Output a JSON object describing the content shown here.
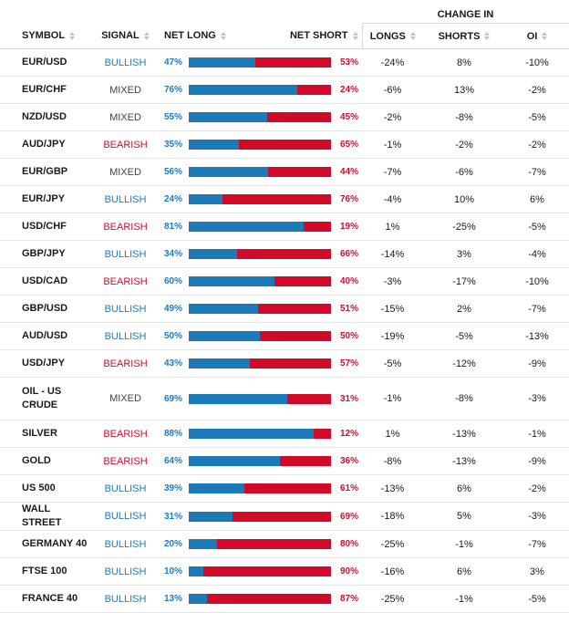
{
  "header": {
    "group_label": "CHANGE IN",
    "columns": {
      "symbol": "SYMBOL",
      "signal": "SIGNAL",
      "net_long": "NET LONG",
      "net_short": "NET SHORT",
      "longs": "LONGS",
      "shorts": "SHORTS",
      "oi": "OI"
    },
    "sort_icon": "sort-arrows-icon"
  },
  "colors": {
    "long": "#1d7ab8",
    "short": "#d10a2a",
    "bullish": "#1a7bbd",
    "bearish": "#c8102e",
    "mixed": "#444444"
  },
  "rows": [
    {
      "symbol": "EUR/USD",
      "signal": "BULLISH",
      "net_long": "47%",
      "net_short": "53%",
      "long_pct": 47,
      "longs": "-24%",
      "shorts": "8%",
      "oi": "-10%"
    },
    {
      "symbol": "EUR/CHF",
      "signal": "MIXED",
      "net_long": "76%",
      "net_short": "24%",
      "long_pct": 76,
      "longs": "-6%",
      "shorts": "13%",
      "oi": "-2%"
    },
    {
      "symbol": "NZD/USD",
      "signal": "MIXED",
      "net_long": "55%",
      "net_short": "45%",
      "long_pct": 55,
      "longs": "-2%",
      "shorts": "-8%",
      "oi": "-5%"
    },
    {
      "symbol": "AUD/JPY",
      "signal": "BEARISH",
      "net_long": "35%",
      "net_short": "65%",
      "long_pct": 35,
      "longs": "-1%",
      "shorts": "-2%",
      "oi": "-2%"
    },
    {
      "symbol": "EUR/GBP",
      "signal": "MIXED",
      "net_long": "56%",
      "net_short": "44%",
      "long_pct": 56,
      "longs": "-7%",
      "shorts": "-6%",
      "oi": "-7%"
    },
    {
      "symbol": "EUR/JPY",
      "signal": "BULLISH",
      "net_long": "24%",
      "net_short": "76%",
      "long_pct": 24,
      "longs": "-4%",
      "shorts": "10%",
      "oi": "6%"
    },
    {
      "symbol": "USD/CHF",
      "signal": "BEARISH",
      "net_long": "81%",
      "net_short": "19%",
      "long_pct": 81,
      "longs": "1%",
      "shorts": "-25%",
      "oi": "-5%"
    },
    {
      "symbol": "GBP/JPY",
      "signal": "BULLISH",
      "net_long": "34%",
      "net_short": "66%",
      "long_pct": 34,
      "longs": "-14%",
      "shorts": "3%",
      "oi": "-4%"
    },
    {
      "symbol": "USD/CAD",
      "signal": "BEARISH",
      "net_long": "60%",
      "net_short": "40%",
      "long_pct": 60,
      "longs": "-3%",
      "shorts": "-17%",
      "oi": "-10%"
    },
    {
      "symbol": "GBP/USD",
      "signal": "BULLISH",
      "net_long": "49%",
      "net_short": "51%",
      "long_pct": 49,
      "longs": "-15%",
      "shorts": "2%",
      "oi": "-7%"
    },
    {
      "symbol": "AUD/USD",
      "signal": "BULLISH",
      "net_long": "50%",
      "net_short": "50%",
      "long_pct": 50,
      "longs": "-19%",
      "shorts": "-5%",
      "oi": "-13%"
    },
    {
      "symbol": "USD/JPY",
      "signal": "BEARISH",
      "net_long": "43%",
      "net_short": "57%",
      "long_pct": 43,
      "longs": "-5%",
      "shorts": "-12%",
      "oi": "-9%"
    },
    {
      "symbol": "OIL - US CRUDE",
      "signal": "MIXED",
      "net_long": "69%",
      "net_short": "31%",
      "long_pct": 69,
      "longs": "-1%",
      "shorts": "-8%",
      "oi": "-3%"
    },
    {
      "symbol": "SILVER",
      "signal": "BEARISH",
      "net_long": "88%",
      "net_short": "12%",
      "long_pct": 88,
      "longs": "1%",
      "shorts": "-13%",
      "oi": "-1%"
    },
    {
      "symbol": "GOLD",
      "signal": "BEARISH",
      "net_long": "64%",
      "net_short": "36%",
      "long_pct": 64,
      "longs": "-8%",
      "shorts": "-13%",
      "oi": "-9%"
    },
    {
      "symbol": "US 500",
      "signal": "BULLISH",
      "net_long": "39%",
      "net_short": "61%",
      "long_pct": 39,
      "longs": "-13%",
      "shorts": "6%",
      "oi": "-2%"
    },
    {
      "symbol": "WALL STREET",
      "signal": "BULLISH",
      "net_long": "31%",
      "net_short": "69%",
      "long_pct": 31,
      "longs": "-18%",
      "shorts": "5%",
      "oi": "-3%"
    },
    {
      "symbol": "GERMANY 40",
      "signal": "BULLISH",
      "net_long": "20%",
      "net_short": "80%",
      "long_pct": 20,
      "longs": "-25%",
      "shorts": "-1%",
      "oi": "-7%"
    },
    {
      "symbol": "FTSE 100",
      "signal": "BULLISH",
      "net_long": "10%",
      "net_short": "90%",
      "long_pct": 10,
      "longs": "-16%",
      "shorts": "6%",
      "oi": "3%"
    },
    {
      "symbol": "FRANCE 40",
      "signal": "BULLISH",
      "net_long": "13%",
      "net_short": "87%",
      "long_pct": 13,
      "longs": "-25%",
      "shorts": "-1%",
      "oi": "-5%"
    }
  ]
}
